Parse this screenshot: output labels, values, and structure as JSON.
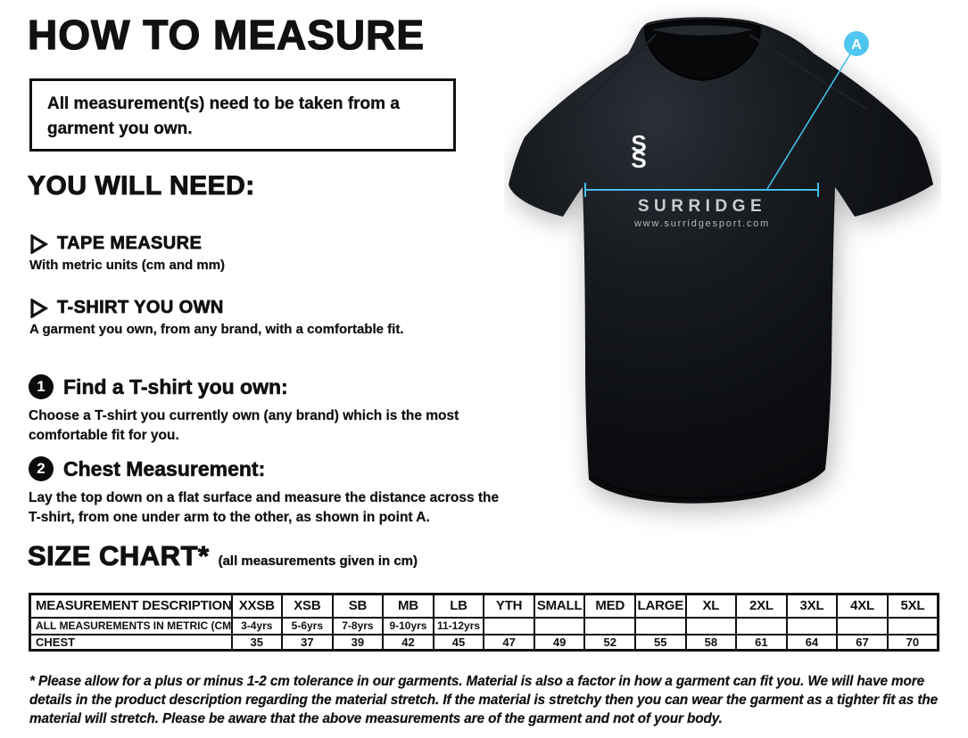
{
  "header": {
    "title": "HOW TO MEASURE"
  },
  "notice": {
    "text": "All measurement(s) need to be taken from a garment you own."
  },
  "you_will_need": {
    "heading": "YOU WILL NEED:",
    "items": [
      {
        "title": "TAPE MEASURE",
        "desc": "With metric units (cm and mm)"
      },
      {
        "title": "T-SHIRT YOU OWN",
        "desc": "A garment you own, from any brand, with a comfortable fit."
      }
    ]
  },
  "steps": [
    {
      "num": "1",
      "title": "Find a T-shirt you own:",
      "desc": "Choose a T-shirt you currently own (any brand) which is the most comfortable fit for you."
    },
    {
      "num": "2",
      "title": "Chest Measurement:",
      "desc": "Lay the top down on a flat surface and measure the distance across the T-shirt, from one under arm to the other, as shown in point A."
    }
  ],
  "size_chart": {
    "heading": "SIZE CHART*",
    "note": "(all measurements given in cm)",
    "table": {
      "columns": [
        "MEASUREMENT DESCRIPTION",
        "XXSB",
        "XSB",
        "SB",
        "MB",
        "LB",
        "YTH",
        "SMALL",
        "MED",
        "LARGE",
        "XL",
        "2XL",
        "3XL",
        "4XL",
        "5XL"
      ],
      "rows": [
        [
          "ALL MEASUREMENTS IN METRIC (CM)",
          "3-4yrs",
          "5-6yrs",
          "7-8yrs",
          "9-10yrs",
          "11-12yrs",
          "",
          "",
          "",
          "",
          "",
          "",
          "",
          "",
          ""
        ],
        [
          "CHEST",
          "35",
          "37",
          "39",
          "42",
          "45",
          "47",
          "49",
          "52",
          "55",
          "58",
          "61",
          "64",
          "67",
          "70"
        ]
      ]
    }
  },
  "footnote": "* Please allow for a plus or minus 1-2 cm tolerance in our garments. Material is also a factor in how a garment can fit you. We will have more details in the product description regarding the material stretch.  If the material is stretchy then you can wear the garment as a tighter fit as the material will stretch.  Please be aware that the above measurements are of the garment and not of your body.",
  "shirt": {
    "brand": "SURRIDGE",
    "website": "www.surridgesport.com",
    "logo_letter": "S",
    "marker_label": "A",
    "accent_color": "#45bee9"
  },
  "chart_data": {
    "type": "table",
    "title": "SIZE CHART (all measurements given in cm)",
    "columns": [
      "MEASUREMENT DESCRIPTION",
      "XXSB",
      "XSB",
      "SB",
      "MB",
      "LB",
      "YTH",
      "SMALL",
      "MED",
      "LARGE",
      "XL",
      "2XL",
      "3XL",
      "4XL",
      "5XL"
    ],
    "rows": [
      [
        "ALL MEASUREMENTS IN METRIC (CM)",
        "3-4yrs",
        "5-6yrs",
        "7-8yrs",
        "9-10yrs",
        "11-12yrs",
        "",
        "",
        "",
        "",
        "",
        "",
        "",
        "",
        ""
      ],
      [
        "CHEST",
        35,
        37,
        39,
        42,
        45,
        47,
        49,
        52,
        55,
        58,
        61,
        64,
        67,
        70
      ]
    ]
  }
}
